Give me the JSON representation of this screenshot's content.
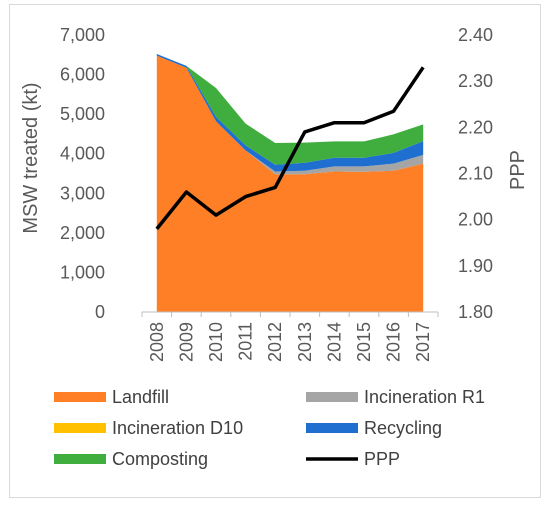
{
  "chart_data": {
    "type": "area",
    "title": "",
    "ylabel": "MSW treated (kt)",
    "y2label": "PPP",
    "x": [
      "2008",
      "2009",
      "2010",
      "2011",
      "2012",
      "2013",
      "2014",
      "2015",
      "2016",
      "2017"
    ],
    "ylim": [
      0,
      7000
    ],
    "yticks": [
      "0",
      "1,000",
      "2,000",
      "3,000",
      "4,000",
      "5,000",
      "6,000",
      "7,000"
    ],
    "y2lim": [
      1.8,
      2.4
    ],
    "y2ticks": [
      "1.80",
      "1.90",
      "2.00",
      "2.10",
      "2.20",
      "2.30",
      "2.40"
    ],
    "stacked": true,
    "series": [
      {
        "name": "Landfill",
        "kind": "area",
        "color": "#ff7f27",
        "values": [
          6480,
          6170,
          4820,
          4080,
          3480,
          3480,
          3550,
          3540,
          3570,
          3750
        ]
      },
      {
        "name": "Incineration R1",
        "kind": "area",
        "color": "#a5a5a5",
        "values": [
          0,
          0,
          0,
          0,
          70,
          90,
          130,
          140,
          180,
          220
        ]
      },
      {
        "name": "Incineration D10",
        "kind": "area",
        "color": "#ffc000",
        "values": [
          0,
          0,
          0,
          0,
          0,
          0,
          0,
          0,
          0,
          0
        ]
      },
      {
        "name": "Recycling",
        "kind": "area",
        "color": "#1f6fd1",
        "values": [
          40,
          50,
          110,
          130,
          170,
          200,
          220,
          220,
          270,
          350
        ]
      },
      {
        "name": "Composting",
        "kind": "area",
        "color": "#3fae3f",
        "values": [
          0,
          0,
          730,
          550,
          550,
          510,
          410,
          410,
          470,
          420
        ]
      },
      {
        "name": "PPP",
        "kind": "line",
        "axis": "secondary",
        "color": "#000000",
        "values": [
          1.98,
          2.06,
          2.01,
          2.05,
          2.07,
          2.19,
          2.21,
          2.21,
          2.235,
          2.33
        ]
      }
    ],
    "legend_position": "bottom",
    "grid": false
  }
}
